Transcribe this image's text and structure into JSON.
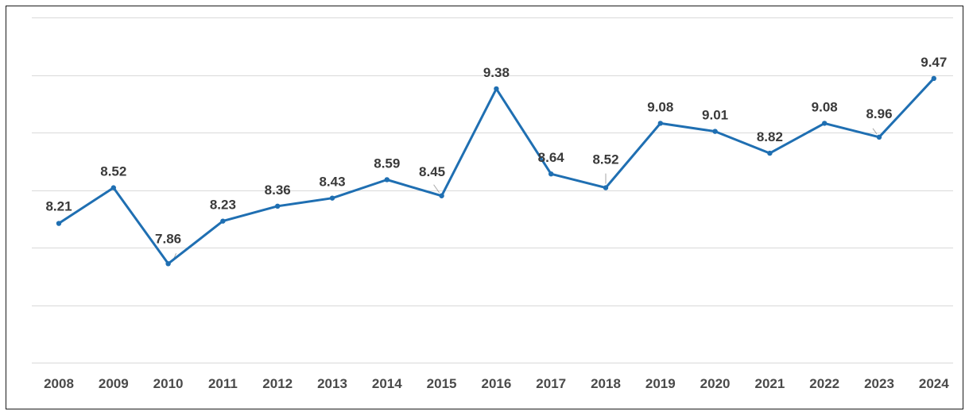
{
  "chart_data": {
    "type": "line",
    "x": [
      "2008",
      "2009",
      "2010",
      "2011",
      "2012",
      "2013",
      "2014",
      "2015",
      "2016",
      "2017",
      "2018",
      "2019",
      "2020",
      "2021",
      "2022",
      "2023",
      "2024"
    ],
    "series": [
      {
        "values": [
          8.21,
          8.52,
          7.86,
          8.23,
          8.36,
          8.43,
          8.59,
          8.45,
          9.38,
          8.64,
          8.52,
          9.08,
          9.01,
          8.82,
          9.08,
          8.96,
          9.47
        ],
        "color": "#1f6fb2"
      }
    ],
    "ylim": [
      7,
      10
    ],
    "gridlines": "horizontal",
    "grid_values": [
      7.0,
      7.5,
      8.0,
      8.5,
      9.0,
      9.5,
      10.0
    ],
    "y_tick_labels_shown": false,
    "legend": "none"
  }
}
